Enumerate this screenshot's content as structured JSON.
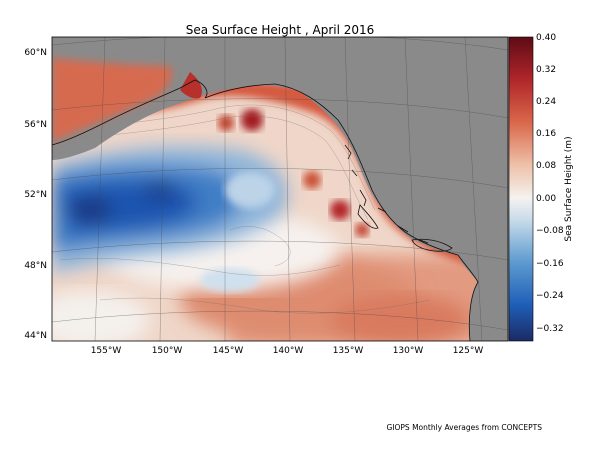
{
  "title": "Sea Surface Height , April 2016",
  "credit": "GIOPS Monthly Averages from CONCEPTS",
  "colorbar": {
    "label": "Sea Surface Height (m)",
    "ticks": [
      "0.40",
      "0.32",
      "0.24",
      "0.16",
      "0.08",
      "0.00",
      "−0.08",
      "−0.16",
      "−0.24",
      "−0.32"
    ],
    "range": [
      -0.36,
      0.4
    ],
    "colormap": [
      "#1c2a63",
      "#1f5fb8",
      "#5e9bd0",
      "#c9dcea",
      "#f5f2ef",
      "#eec0a8",
      "#d9674a",
      "#b0262a",
      "#5e0b15"
    ]
  },
  "axes": {
    "lat_ticks": [
      "60°N",
      "56°N",
      "52°N",
      "48°N",
      "44°N"
    ],
    "lon_ticks": [
      "155°W",
      "150°W",
      "145°W",
      "140°W",
      "135°W",
      "130°W",
      "125°W"
    ]
  },
  "colors": {
    "land": "#8a8a8a",
    "coast": "#111111",
    "high": "#b83329",
    "low": "#1f57b0",
    "neutral": "#f3eeea"
  }
}
